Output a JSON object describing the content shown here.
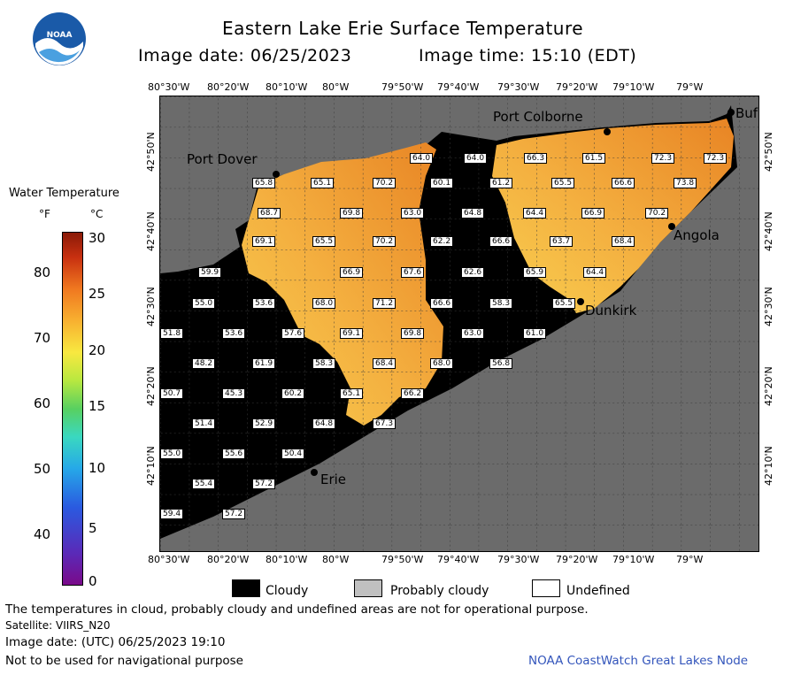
{
  "header": {
    "title": "Eastern Lake Erie Surface Temperature",
    "image_date_label": "Image date: 06/25/2023",
    "image_time_label": "Image time: 15:10 (EDT)",
    "logo_text": "NOAA"
  },
  "colorbar": {
    "title": "Water Temperature",
    "unit_f": "°F",
    "unit_c": "°C",
    "f_ticks": [
      "80",
      "70",
      "60",
      "50",
      "40"
    ],
    "c_ticks": [
      "30",
      "25",
      "20",
      "15",
      "10",
      "5",
      "0"
    ]
  },
  "axes": {
    "lon_ticks": [
      "80°30'W",
      "80°20'W",
      "80°10'W",
      "80°W",
      "79°50'W",
      "79°40'W",
      "79°30'W",
      "79°20'W",
      "79°10'W",
      "79°W"
    ],
    "lat_ticks": [
      "42°50'N",
      "42°40'N",
      "42°30'N",
      "42°20'N",
      "42°10'N"
    ]
  },
  "cities": {
    "port_dover": "Port Dover",
    "port_colborne": "Port Colborne",
    "buffalo": "Buf",
    "angola": "Angola",
    "dunkirk": "Dunkirk",
    "erie": "Erie"
  },
  "values": [
    "64.0",
    "64.0",
    "66.3",
    "61.5",
    "72.3",
    "72.3",
    "65.8",
    "65.1",
    "70.2",
    "60.1",
    "61.2",
    "65.5",
    "66.6",
    "73.8",
    "68.7",
    "69.8",
    "63.0",
    "64.8",
    "64.4",
    "66.9",
    "70.2",
    "69.1",
    "65.5",
    "70.2",
    "62.2",
    "66.6",
    "63.7",
    "68.4",
    "59.9",
    "66.9",
    "67.6",
    "62.6",
    "65.9",
    "64.4",
    "55.0",
    "53.6",
    "68.0",
    "71.2",
    "66.6",
    "58.3",
    "65.5",
    "51.8",
    "53.6",
    "57.6",
    "69.1",
    "69.8",
    "63.0",
    "61.0",
    "48.2",
    "61.9",
    "58.3",
    "68.4",
    "68.0",
    "56.8",
    "50.7",
    "45.3",
    "60.2",
    "65.1",
    "66.2",
    "51.4",
    "52.9",
    "64.8",
    "67.3",
    "55.0",
    "55.6",
    "50.4",
    "55.4",
    "57.2",
    "59.4",
    "57.2"
  ],
  "legend": {
    "cloudy": "Cloudy",
    "probably_cloudy": "Probably cloudy",
    "undefined": "Undefined",
    "cloudy_color": "#000000",
    "probably_cloudy_color": "#c0c0c0",
    "undefined_color": "#ffffff"
  },
  "footer": {
    "note": "The temperatures in cloud, probably cloudy and undefined areas are not for operational purpose.",
    "satellite": "Satellite: VIIRS_N20",
    "utc_date": "Image date: (UTC) 06/25/2023  19:10",
    "nav": "Not to be used for navigational purpose",
    "credit": "NOAA CoastWatch Great Lakes Node"
  },
  "colors": {
    "land": "#6b6b6b",
    "cloud": "#000000",
    "water_warm": "#f0a030",
    "water_hot": "#e8801c",
    "water_mid": "#f8c848",
    "credit_blue": "#3355bb"
  }
}
